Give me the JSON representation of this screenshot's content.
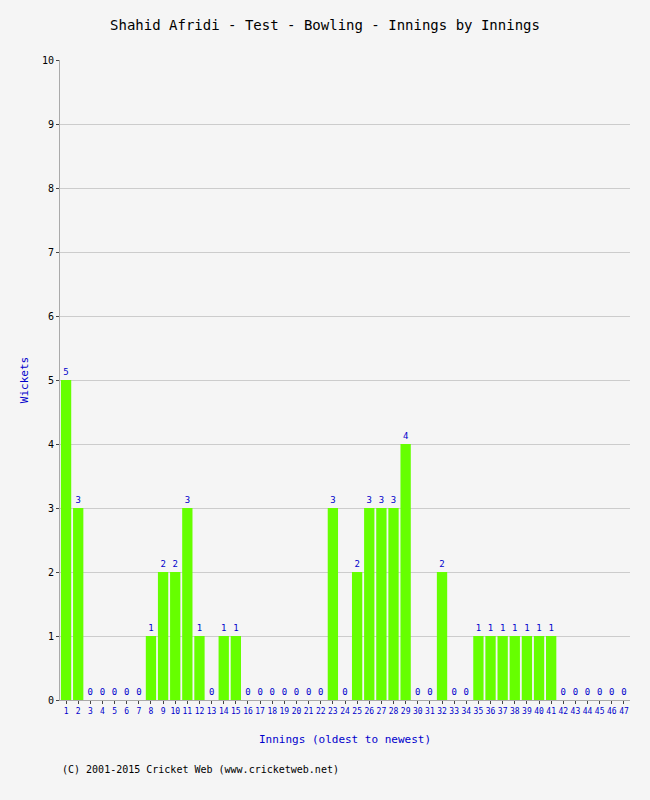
{
  "chart_data": {
    "type": "bar",
    "title": "Shahid Afridi - Test - Bowling - Innings by Innings",
    "xlabel": "Innings (oldest to newest)",
    "ylabel": "Wickets",
    "categories": [
      "1",
      "2",
      "3",
      "4",
      "5",
      "6",
      "7",
      "8",
      "9",
      "10",
      "11",
      "12",
      "13",
      "14",
      "15",
      "16",
      "17",
      "18",
      "19",
      "20",
      "21",
      "22",
      "23",
      "24",
      "25",
      "26",
      "27",
      "28",
      "29",
      "30",
      "31",
      "32",
      "33",
      "34",
      "35",
      "36",
      "37",
      "38",
      "39",
      "40",
      "41",
      "42",
      "43",
      "44",
      "45",
      "46",
      "47"
    ],
    "values": [
      5,
      3,
      0,
      0,
      0,
      0,
      0,
      1,
      2,
      2,
      3,
      1,
      0,
      1,
      1,
      0,
      0,
      0,
      0,
      0,
      0,
      0,
      3,
      0,
      2,
      3,
      3,
      3,
      4,
      0,
      0,
      2,
      0,
      0,
      1,
      1,
      1,
      1,
      1,
      1,
      1,
      0,
      0,
      0,
      0,
      0,
      0
    ],
    "color": "#66ff00",
    "ylim": [
      0,
      10
    ],
    "yticks": [
      0,
      1,
      2,
      3,
      4,
      5,
      6,
      7,
      8,
      9,
      10
    ],
    "grid": true,
    "data_labels": true,
    "annotations": [
      "(C) 2001-2015 Cricket Web (www.cricketweb.net)"
    ]
  }
}
